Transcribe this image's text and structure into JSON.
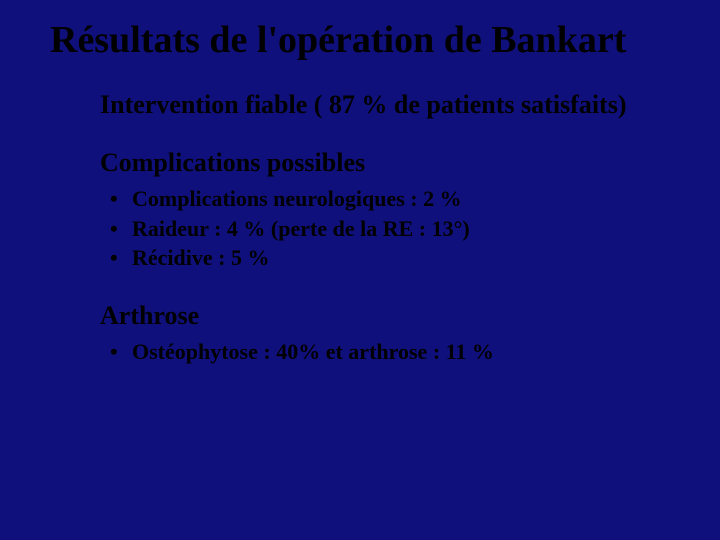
{
  "background_color": "#10107c",
  "text_color": "#000000",
  "font_family": "Times New Roman",
  "title": "Résultats de l'opération de Bankart",
  "satisfaction_line": "Intervention fiable ( 87 % de patients satisfaits)",
  "complications": {
    "heading": "Complications possibles",
    "items": [
      "Complications neurologiques : 2 %",
      "Raideur :  4 % (perte de la RE : 13°)",
      "Récidive : 5 %"
    ]
  },
  "arthrose": {
    "heading": "Arthrose",
    "items": [
      "Ostéophytose : 40%  et arthrose : 11 %"
    ]
  }
}
